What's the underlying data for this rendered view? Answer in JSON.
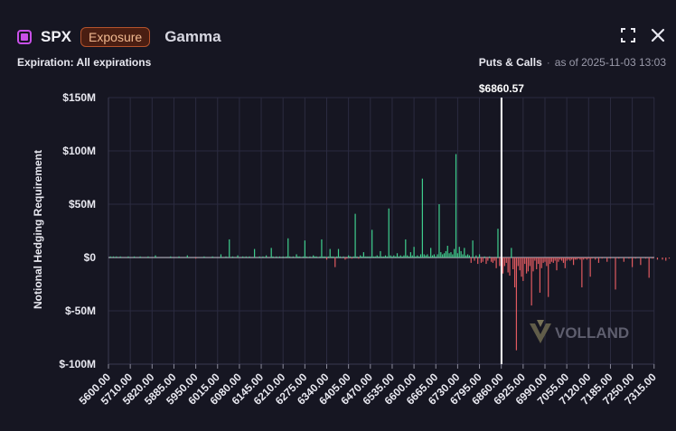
{
  "header": {
    "ticker": "SPX",
    "badge": "Exposure",
    "greek": "Gamma",
    "expiration": "Expiration: All expirations",
    "mode": "Puts & Calls",
    "dot": "·",
    "as_of": "as of 2025-11-03 13:03"
  },
  "watermark": "VOLLAND",
  "spot_label": "$6860.57",
  "colors": {
    "positive": "#3fcf8e",
    "negative": "#e05a60",
    "spot": "#ffffff",
    "grid": "#2b2b40",
    "accent": "#c850e8"
  },
  "icons": {
    "fullscreen": "fullscreen-icon",
    "close": "close-icon"
  },
  "chart_data": {
    "type": "bar",
    "ylabel": "Notional Hedging Requirement",
    "ylim": [
      -100,
      150
    ],
    "y_ticks": [
      150,
      100,
      50,
      0,
      -50,
      -100
    ],
    "y_tick_labels": [
      "$150M",
      "$100M",
      "$50M",
      "$0",
      "$-50M",
      "$-100M"
    ],
    "x_ticks": [
      5600,
      5710,
      5820,
      5885,
      5950,
      6015,
      6080,
      6145,
      6210,
      6275,
      6340,
      6405,
      6470,
      6535,
      6600,
      6665,
      6730,
      6795,
      6860,
      6925,
      6990,
      7055,
      7120,
      7185,
      7250,
      7315
    ],
    "x_tick_labels": [
      "5600.00",
      "5710.00",
      "5820.00",
      "5885.00",
      "5950.00",
      "6015.00",
      "6080.00",
      "6145.00",
      "6210.00",
      "6275.00",
      "6340.00",
      "6405.00",
      "6470.00",
      "6535.00",
      "6600.00",
      "6665.00",
      "6730.00",
      "6795.00",
      "6860.00",
      "6925.00",
      "6990.00",
      "7055.00",
      "7120.00",
      "7185.00",
      "7250.00",
      "7315.00"
    ],
    "spot": 6860.57,
    "series": [
      {
        "values": [
          [
            5610,
            1
          ],
          [
            5625,
            1
          ],
          [
            5640,
            1
          ],
          [
            5660,
            1
          ],
          [
            5700,
            1
          ],
          [
            5730,
            1
          ],
          [
            5760,
            1
          ],
          [
            5800,
            1
          ],
          [
            5830,
            2
          ],
          [
            5875,
            1
          ],
          [
            5900,
            1
          ],
          [
            5925,
            2
          ],
          [
            5950,
            -1
          ],
          [
            5975,
            1
          ],
          [
            6000,
            1
          ],
          [
            6025,
            3
          ],
          [
            6040,
            1
          ],
          [
            6050,
            17
          ],
          [
            6060,
            1
          ],
          [
            6075,
            2
          ],
          [
            6090,
            1
          ],
          [
            6100,
            1
          ],
          [
            6110,
            1
          ],
          [
            6125,
            8
          ],
          [
            6140,
            1
          ],
          [
            6150,
            1
          ],
          [
            6160,
            2
          ],
          [
            6175,
            9
          ],
          [
            6180,
            1
          ],
          [
            6190,
            1
          ],
          [
            6200,
            1
          ],
          [
            6210,
            1
          ],
          [
            6220,
            1
          ],
          [
            6225,
            18
          ],
          [
            6230,
            1
          ],
          [
            6240,
            1
          ],
          [
            6250,
            3
          ],
          [
            6255,
            1
          ],
          [
            6260,
            1
          ],
          [
            6270,
            1
          ],
          [
            6275,
            16
          ],
          [
            6280,
            1
          ],
          [
            6290,
            1
          ],
          [
            6300,
            2
          ],
          [
            6305,
            1
          ],
          [
            6310,
            1
          ],
          [
            6320,
            1
          ],
          [
            6325,
            17
          ],
          [
            6330,
            1
          ],
          [
            6335,
            1
          ],
          [
            6340,
            -2
          ],
          [
            6345,
            1
          ],
          [
            6350,
            8
          ],
          [
            6355,
            1
          ],
          [
            6360,
            1
          ],
          [
            6365,
            -9
          ],
          [
            6370,
            1
          ],
          [
            6375,
            8
          ],
          [
            6380,
            1
          ],
          [
            6390,
            1
          ],
          [
            6395,
            -2
          ],
          [
            6400,
            -1
          ],
          [
            6405,
            2
          ],
          [
            6410,
            1
          ],
          [
            6415,
            -1
          ],
          [
            6420,
            1
          ],
          [
            6425,
            41
          ],
          [
            6430,
            1
          ],
          [
            6435,
            -1
          ],
          [
            6440,
            2
          ],
          [
            6445,
            1
          ],
          [
            6450,
            5
          ],
          [
            6455,
            1
          ],
          [
            6460,
            1
          ],
          [
            6465,
            1
          ],
          [
            6470,
            1
          ],
          [
            6475,
            26
          ],
          [
            6480,
            1
          ],
          [
            6485,
            1
          ],
          [
            6490,
            2
          ],
          [
            6495,
            1
          ],
          [
            6500,
            6
          ],
          [
            6505,
            1
          ],
          [
            6510,
            1
          ],
          [
            6515,
            2
          ],
          [
            6520,
            1
          ],
          [
            6525,
            46
          ],
          [
            6530,
            2
          ],
          [
            6535,
            1
          ],
          [
            6540,
            2
          ],
          [
            6545,
            1
          ],
          [
            6550,
            4
          ],
          [
            6555,
            1
          ],
          [
            6560,
            2
          ],
          [
            6565,
            1
          ],
          [
            6570,
            2
          ],
          [
            6575,
            17
          ],
          [
            6580,
            2
          ],
          [
            6585,
            1
          ],
          [
            6590,
            5
          ],
          [
            6595,
            2
          ],
          [
            6600,
            10
          ],
          [
            6605,
            1
          ],
          [
            6610,
            2
          ],
          [
            6615,
            1
          ],
          [
            6620,
            3
          ],
          [
            6625,
            74
          ],
          [
            6630,
            3
          ],
          [
            6635,
            2
          ],
          [
            6640,
            3
          ],
          [
            6645,
            1
          ],
          [
            6650,
            9
          ],
          [
            6655,
            2
          ],
          [
            6660,
            3
          ],
          [
            6665,
            1
          ],
          [
            6670,
            3
          ],
          [
            6675,
            50
          ],
          [
            6680,
            5
          ],
          [
            6685,
            3
          ],
          [
            6690,
            4
          ],
          [
            6695,
            6
          ],
          [
            6700,
            11
          ],
          [
            6705,
            4
          ],
          [
            6710,
            5
          ],
          [
            6715,
            3
          ],
          [
            6720,
            8
          ],
          [
            6725,
            97
          ],
          [
            6730,
            4
          ],
          [
            6735,
            10
          ],
          [
            6740,
            6
          ],
          [
            6745,
            3
          ],
          [
            6750,
            9
          ],
          [
            6755,
            2
          ],
          [
            6760,
            3
          ],
          [
            6765,
            2
          ],
          [
            6770,
            -5
          ],
          [
            6775,
            16
          ],
          [
            6780,
            -3
          ],
          [
            6785,
            2
          ],
          [
            6790,
            -6
          ],
          [
            6795,
            3
          ],
          [
            6800,
            -5
          ],
          [
            6805,
            -4
          ],
          [
            6810,
            1
          ],
          [
            6815,
            -6
          ],
          [
            6820,
            -3
          ],
          [
            6825,
            1
          ],
          [
            6830,
            -4
          ],
          [
            6835,
            -5
          ],
          [
            6840,
            -3
          ],
          [
            6845,
            -10
          ],
          [
            6850,
            27
          ],
          [
            6855,
            -8
          ],
          [
            6860,
            7
          ],
          [
            6865,
            -15
          ],
          [
            6870,
            -8
          ],
          [
            6875,
            -5
          ],
          [
            6880,
            -14
          ],
          [
            6885,
            -17
          ],
          [
            6890,
            9
          ],
          [
            6895,
            -11
          ],
          [
            6900,
            -28
          ],
          [
            6905,
            -87
          ],
          [
            6910,
            -8
          ],
          [
            6915,
            -12
          ],
          [
            6920,
            -18
          ],
          [
            6925,
            -22
          ],
          [
            6930,
            -6
          ],
          [
            6935,
            -15
          ],
          [
            6940,
            -13
          ],
          [
            6945,
            -8
          ],
          [
            6950,
            -45
          ],
          [
            6955,
            -13
          ],
          [
            6960,
            -3
          ],
          [
            6965,
            -11
          ],
          [
            6970,
            -6
          ],
          [
            6975,
            -33
          ],
          [
            6980,
            -10
          ],
          [
            6985,
            -5
          ],
          [
            6990,
            -4
          ],
          [
            6995,
            -8
          ],
          [
            7000,
            -37
          ],
          [
            7005,
            -6
          ],
          [
            7010,
            -4
          ],
          [
            7015,
            -5
          ],
          [
            7020,
            -3
          ],
          [
            7025,
            -12
          ],
          [
            7030,
            -4
          ],
          [
            7035,
            -2
          ],
          [
            7040,
            -3
          ],
          [
            7045,
            -5
          ],
          [
            7050,
            -10
          ],
          [
            7055,
            -3
          ],
          [
            7060,
            -2
          ],
          [
            7065,
            -3
          ],
          [
            7070,
            -2
          ],
          [
            7075,
            -7
          ],
          [
            7080,
            -2
          ],
          [
            7085,
            -2
          ],
          [
            7090,
            -1
          ],
          [
            7095,
            -2
          ],
          [
            7100,
            -28
          ],
          [
            7105,
            -2
          ],
          [
            7110,
            -1
          ],
          [
            7115,
            -2
          ],
          [
            7120,
            -1
          ],
          [
            7125,
            -18
          ],
          [
            7130,
            -1
          ],
          [
            7140,
            -2
          ],
          [
            7150,
            -5
          ],
          [
            7160,
            -1
          ],
          [
            7175,
            -4
          ],
          [
            7185,
            -1
          ],
          [
            7200,
            -30
          ],
          [
            7210,
            -1
          ],
          [
            7225,
            -4
          ],
          [
            7240,
            -1
          ],
          [
            7250,
            -9
          ],
          [
            7260,
            -1
          ],
          [
            7275,
            -7
          ],
          [
            7290,
            -1
          ],
          [
            7300,
            -19
          ],
          [
            7310,
            -1
          ],
          [
            7325,
            -2
          ],
          [
            7340,
            -2
          ],
          [
            7350,
            -3
          ],
          [
            7360,
            -1
          ]
        ]
      }
    ]
  }
}
